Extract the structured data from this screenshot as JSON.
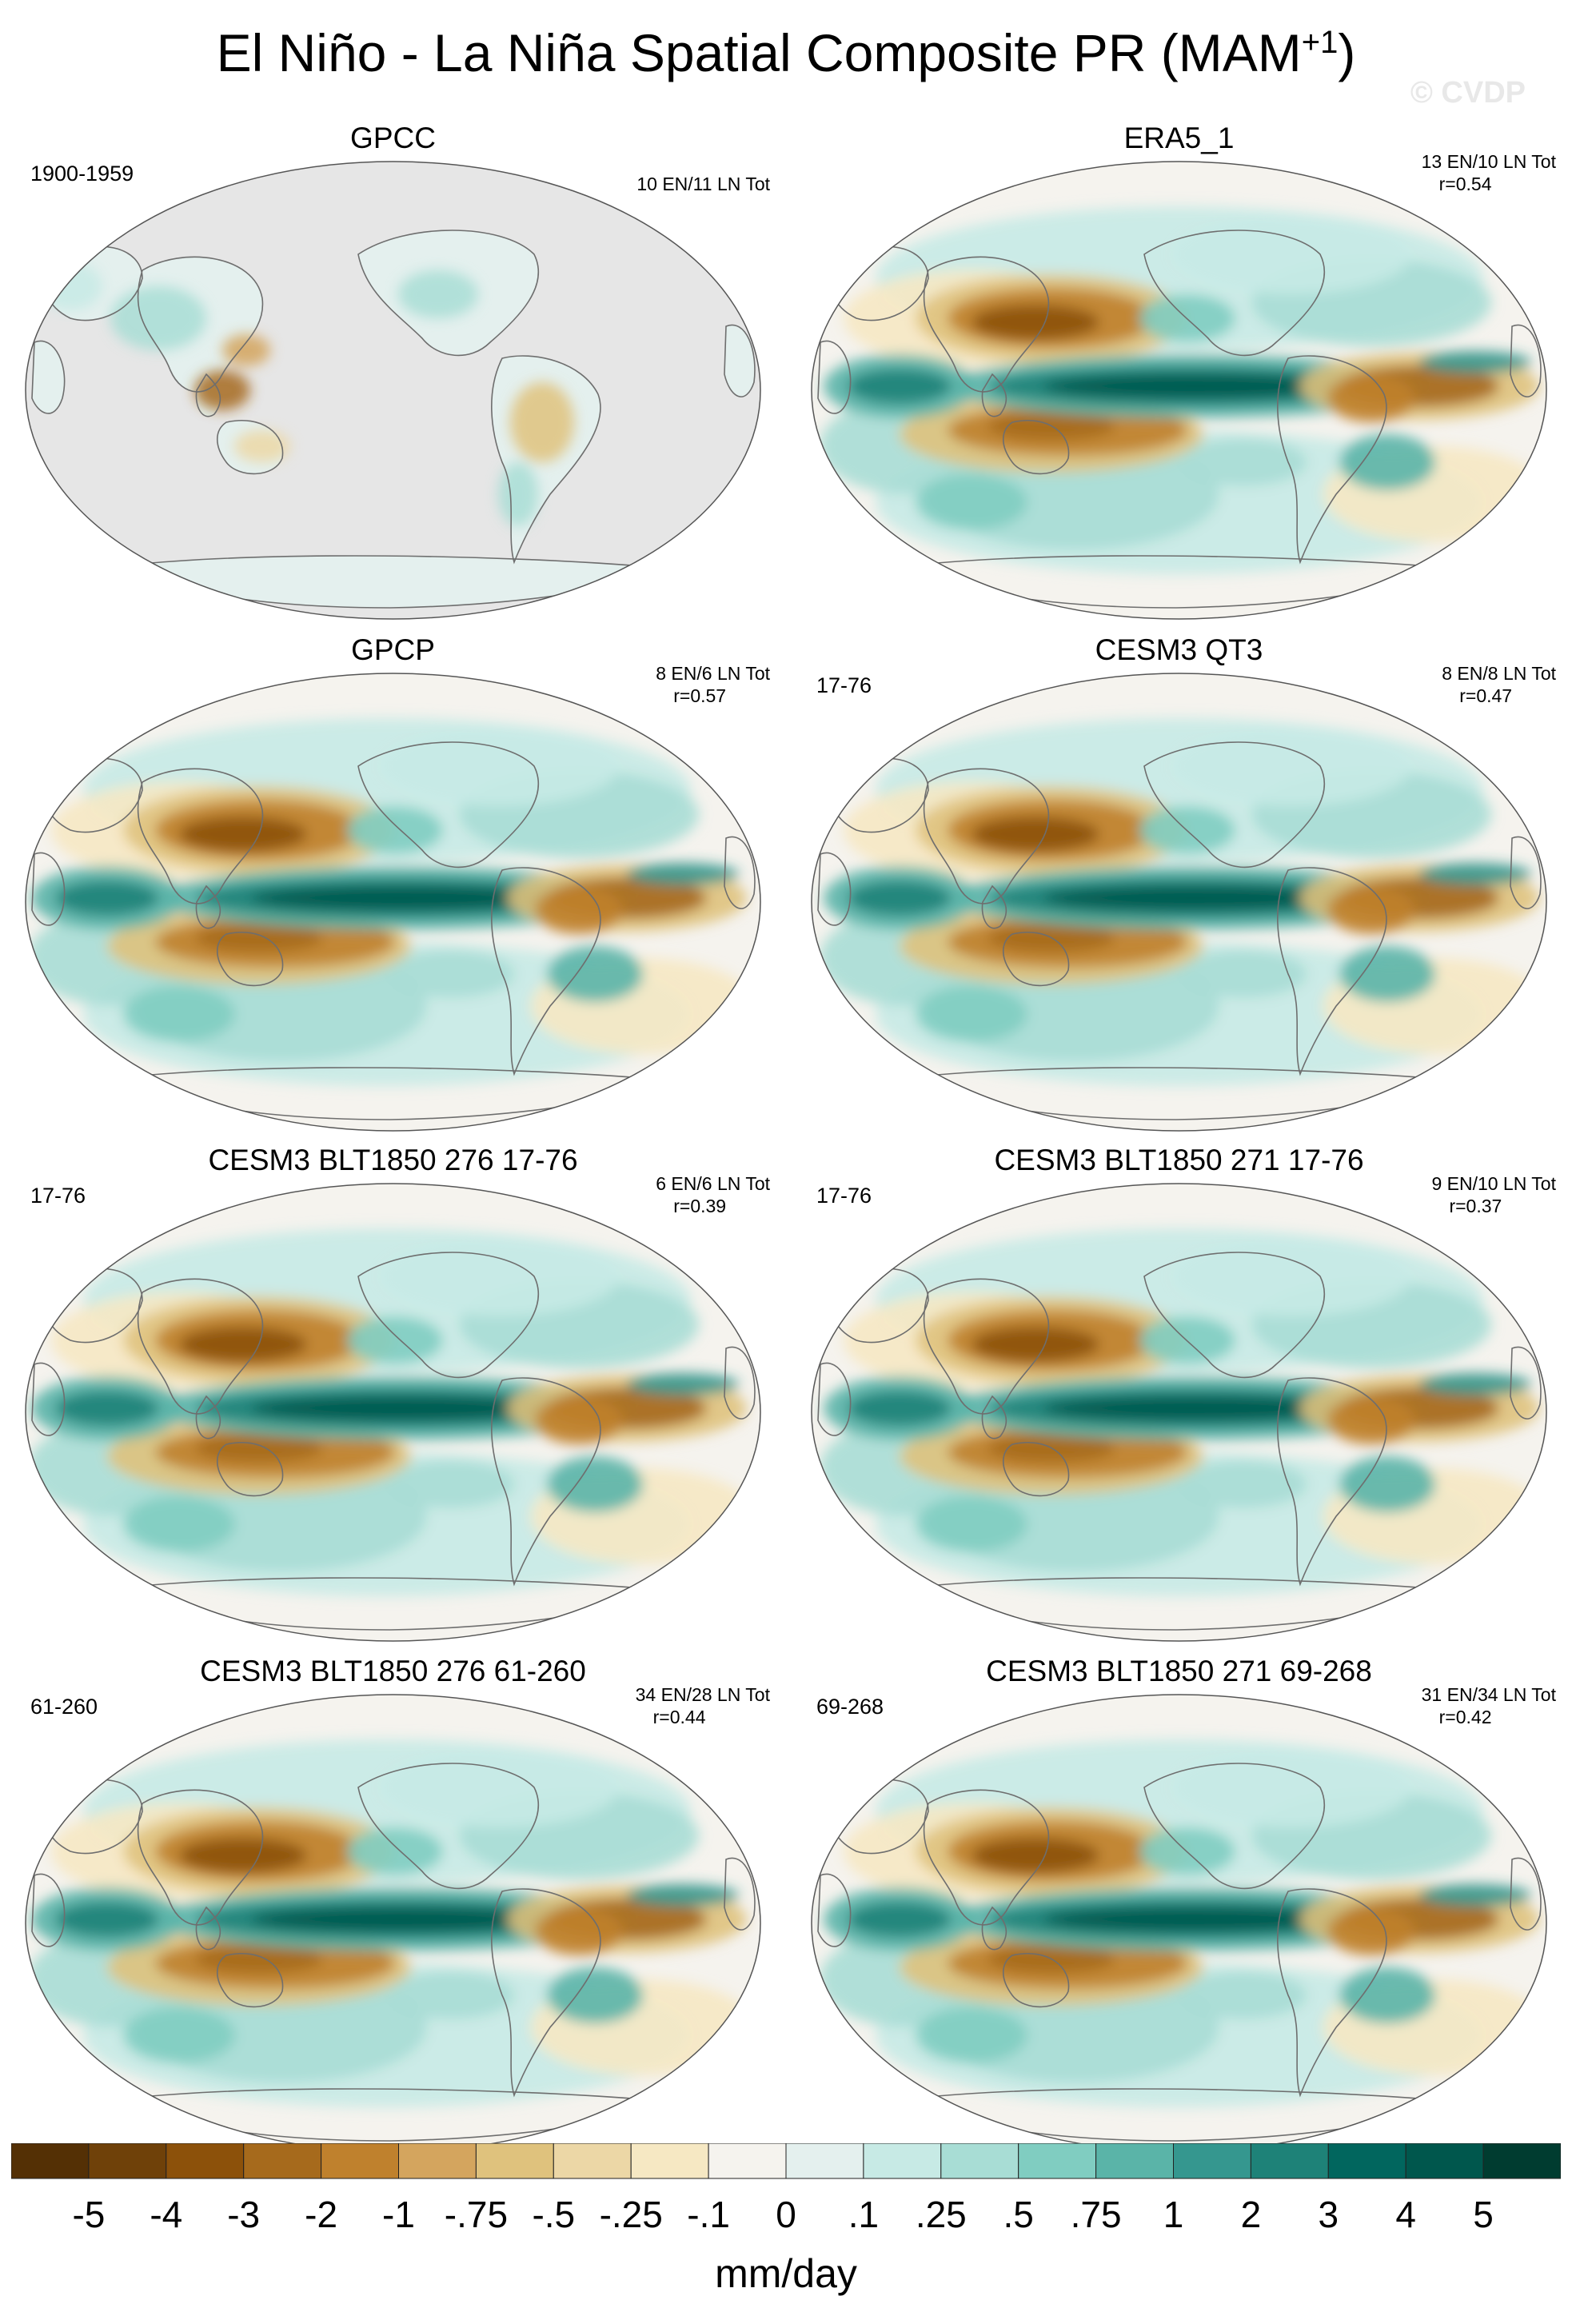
{
  "title": {
    "main": "El Niño - La Niña Spatial Composite PR (MAM",
    "sup": "+1",
    "close": ")"
  },
  "watermark": "© CVDP",
  "panels": [
    {
      "name": "GPCC",
      "years": "1900-1959",
      "counts": "10 EN/11 LN Tot",
      "corr": "",
      "mode": "land"
    },
    {
      "name": "ERA5_1",
      "years": "",
      "counts": "13 EN/10 LN Tot",
      "corr": "r=0.54",
      "mode": "full"
    },
    {
      "name": "GPCP",
      "years": "",
      "counts": "8 EN/6 LN Tot",
      "corr": "r=0.57",
      "mode": "full"
    },
    {
      "name": "CESM3 QT3",
      "years": "17-76",
      "counts": "8 EN/8 LN Tot",
      "corr": "r=0.47",
      "mode": "full"
    },
    {
      "name": "CESM3 BLT1850 276 17-76",
      "years": "17-76",
      "counts": "6 EN/6 LN Tot",
      "corr": "r=0.39",
      "mode": "full"
    },
    {
      "name": "CESM3 BLT1850 271 17-76",
      "years": "17-76",
      "counts": "9 EN/10 LN Tot",
      "corr": "r=0.37",
      "mode": "full"
    },
    {
      "name": "CESM3 BLT1850 276 61-260",
      "years": "61-260",
      "counts": "34 EN/28 LN Tot",
      "corr": "r=0.44",
      "mode": "full"
    },
    {
      "name": "CESM3 BLT1850 271 69-268",
      "years": "69-268",
      "counts": "31 EN/34 LN Tot",
      "corr": "r=0.42",
      "mode": "full"
    }
  ],
  "colorbar": {
    "labels": [
      "-5",
      "-4",
      "-3",
      "-2",
      "-1",
      "-.75",
      "-.5",
      "-.25",
      "-.1",
      "0",
      ".1",
      ".25",
      ".5",
      ".75",
      "1",
      "2",
      "3",
      "4",
      "5"
    ],
    "colors": [
      "#543005",
      "#6f4109",
      "#8c510a",
      "#a66a1c",
      "#bf812d",
      "#d4a55e",
      "#dfc27d",
      "#ecd7a6",
      "#f6e8c3",
      "#f5f3ee",
      "#e4f0ee",
      "#c7eae5",
      "#a8ddd5",
      "#80cdc1",
      "#5ab4a8",
      "#35978f",
      "#1e8278",
      "#01665e",
      "#00574d",
      "#003c30"
    ],
    "units": "mm/day"
  },
  "land_color": "#e6e6e6",
  "coast_color": "#6e6e6e"
}
